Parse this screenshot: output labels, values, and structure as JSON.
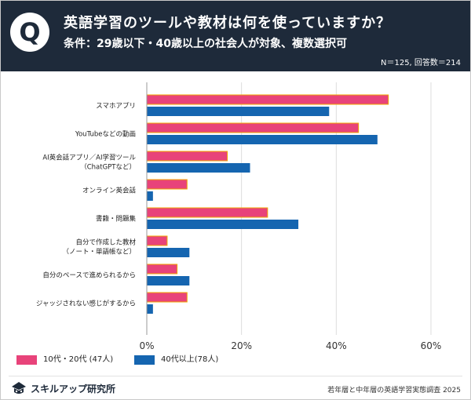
{
  "header": {
    "q_mark": "Q",
    "title": "英語学習のツールや教材は何を使っていますか？",
    "subtitle": "条件：29歳以下・40歳以上の社会人が対象、複数選択可",
    "sample": "N＝125, 回答数＝214"
  },
  "colors": {
    "series1": "#e8437a",
    "series1_border": "#f0a500",
    "series2": "#1565b0",
    "header_bg": "#1e2a3a"
  },
  "chart_data": {
    "type": "bar",
    "orientation": "horizontal",
    "categories": [
      [
        "スマホアプリ"
      ],
      [
        "YouTubeなどの動画"
      ],
      [
        "AI英会話アプリ／AI学習ツール",
        "（ChatGPTなど）"
      ],
      [
        "オンライン英会話"
      ],
      [
        "書籍・問題集"
      ],
      [
        "自分で作成した教材",
        "（ノート・単語帳など）"
      ],
      [
        "自分のペースで進められるから"
      ],
      [
        "ジャッジされない感じがするから"
      ]
    ],
    "series": [
      {
        "name": "10代・20代 (47人)",
        "values": [
          51,
          44.7,
          17,
          8.5,
          25.5,
          4.3,
          6.4,
          8.5
        ]
      },
      {
        "name": "40代以上(78人)",
        "values": [
          38.5,
          48.7,
          21.8,
          1.3,
          32,
          9,
          9,
          1.3
        ]
      }
    ],
    "xlim": [
      0,
      60
    ],
    "xticks": [
      "0%",
      "20%",
      "40%",
      "60%"
    ],
    "xtick_values": [
      0,
      20,
      40,
      60
    ],
    "grid": true,
    "legend_position": "bottom-left"
  },
  "footer": {
    "logo": "スキルアップ研究所",
    "source": "若年層と中年層の英語学習実態調査 2025"
  }
}
